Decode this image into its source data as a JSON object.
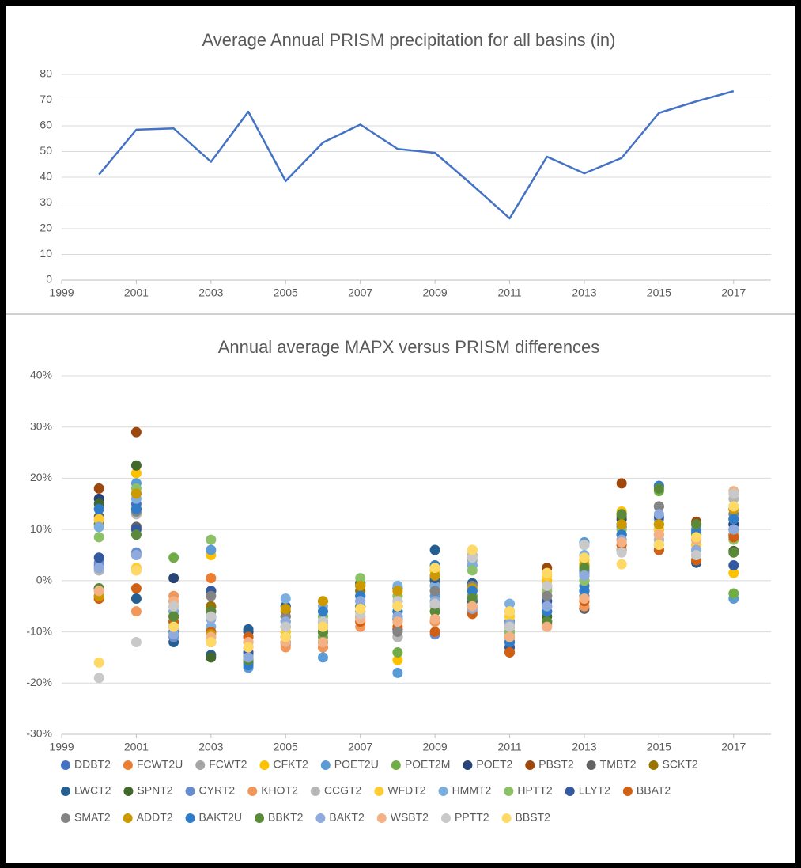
{
  "chart_data": [
    {
      "type": "line",
      "title": "Average Annual PRISM precipitation for all basins (in)",
      "x": [
        2000,
        2001,
        2002,
        2003,
        2004,
        2005,
        2006,
        2007,
        2008,
        2009,
        2010,
        2011,
        2012,
        2013,
        2014,
        2015,
        2016,
        2017
      ],
      "values": [
        41,
        58.5,
        59,
        46,
        65.5,
        38.5,
        53.5,
        60.5,
        51,
        49.5,
        37,
        24,
        48,
        41.5,
        47.5,
        65,
        69.5,
        73.5
      ],
      "color": "#4472c4",
      "xlim": [
        1999,
        2018
      ],
      "xticks": [
        1999,
        2001,
        2003,
        2005,
        2007,
        2009,
        2011,
        2013,
        2015,
        2017
      ],
      "ylim": [
        0,
        80
      ],
      "yticks": [
        0,
        10,
        20,
        30,
        40,
        50,
        60,
        70,
        80
      ],
      "grid": true
    },
    {
      "type": "scatter",
      "title": "Annual average MAPX versus PRISM differences",
      "x": [
        2000,
        2001,
        2002,
        2003,
        2004,
        2005,
        2006,
        2007,
        2008,
        2009,
        2010,
        2011,
        2012,
        2013,
        2014,
        2015,
        2016,
        2017
      ],
      "xlim": [
        1999,
        2018
      ],
      "xticks": [
        1999,
        2001,
        2003,
        2005,
        2007,
        2009,
        2011,
        2013,
        2015,
        2017
      ],
      "ylim": [
        -30,
        40
      ],
      "yticks": [
        {
          "value": -30,
          "label": "-30%"
        },
        {
          "value": -20,
          "label": "-20%"
        },
        {
          "value": -10,
          "label": "-10%"
        },
        {
          "value": 0,
          "label": "0%"
        },
        {
          "value": 10,
          "label": "10%"
        },
        {
          "value": 20,
          "label": "20%"
        },
        {
          "value": 30,
          "label": "30%"
        },
        {
          "value": 40,
          "label": "40%"
        }
      ],
      "grid": true,
      "legend": "bottom",
      "series": [
        {
          "name": "DDBT2",
          "color": "#4472c4",
          "values": [
            3,
            15,
            -10,
            -6,
            -15,
            -12,
            -10,
            -4,
            -7,
            0,
            -3,
            -12,
            -5,
            -1,
            9,
            9,
            7,
            11
          ]
        },
        {
          "name": "FCWT2U",
          "color": "#ed7d31",
          "values": [
            -3,
            5,
            -4,
            0.5,
            -12,
            -11,
            -8,
            -8,
            -8,
            -8,
            -5,
            -13,
            -8,
            -4,
            7,
            11,
            6,
            9
          ]
        },
        {
          "name": "FCWT2",
          "color": "#a5a5a5",
          "values": [
            2,
            13,
            -5,
            -7,
            -11,
            -9,
            -9,
            -5,
            -6,
            -4,
            4,
            -10,
            -2,
            7,
            10,
            10,
            6,
            10
          ]
        },
        {
          "name": "CFKT2",
          "color": "#ffc000",
          "values": [
            -3.5,
            21,
            -9,
            5,
            -13,
            -10,
            -6,
            -5,
            -15.5,
            3,
            5,
            -7,
            0,
            4,
            13.5,
            11,
            8,
            1.5
          ]
        },
        {
          "name": "POET2U",
          "color": "#5b9bd5",
          "values": [
            11,
            19,
            -8,
            6,
            -17,
            -12.5,
            -15,
            -2,
            -18,
            -3,
            3,
            -13,
            -6,
            7.5,
            9,
            18.5,
            9,
            -3.5
          ]
        },
        {
          "name": "POET2M",
          "color": "#70ad47",
          "values": [
            -2,
            9,
            4.5,
            -6,
            -13,
            -7,
            -11,
            -1,
            -14,
            -6,
            -3,
            -8,
            -8,
            3,
            8,
            17.5,
            11,
            -2.5
          ]
        },
        {
          "name": "POET2",
          "color": "#264478",
          "values": [
            16,
            14,
            0.5,
            -2,
            -10,
            -5,
            -12,
            -1,
            -9.5,
            1,
            -1,
            -10,
            -4,
            1,
            12,
            12,
            10,
            11
          ]
        },
        {
          "name": "PBST2",
          "color": "#9e480e",
          "values": [
            18,
            29,
            -7,
            -5,
            -11,
            -7,
            -8,
            -3,
            -4,
            -1,
            -2,
            -11,
            2.5,
            -2,
            19,
            10,
            11.5,
            9
          ]
        },
        {
          "name": "TMBT2",
          "color": "#636363",
          "values": [
            12.5,
            10.5,
            -6,
            -12,
            -14,
            -8,
            -13,
            -7,
            -11,
            -2,
            -6,
            -14,
            -5,
            -5.5,
            6,
            14.5,
            4,
            9
          ]
        },
        {
          "name": "SCKT2",
          "color": "#997300",
          "values": [
            11,
            17,
            -8,
            -5,
            -12,
            -6,
            -4,
            -2,
            -3,
            2,
            -4,
            -9,
            -1,
            0,
            13,
            11,
            5,
            14
          ]
        },
        {
          "name": "LWCT2",
          "color": "#255e91",
          "values": [
            -1.5,
            -3.5,
            -12,
            -14.5,
            -9.5,
            -5,
            -10,
            -0.5,
            -1.5,
            6,
            -0.5,
            -6,
            -3,
            2,
            10.5,
            6,
            3.5,
            12
          ]
        },
        {
          "name": "SPNT2",
          "color": "#43682b",
          "values": [
            15,
            22.5,
            -7,
            -15,
            -16,
            -9,
            -12,
            -0.5,
            -7.5,
            0,
            -4,
            -11,
            -7,
            3,
            12.5,
            7,
            11,
            5.8
          ]
        },
        {
          "name": "CYRT2",
          "color": "#698ed0",
          "values": [
            3.5,
            5.5,
            -11,
            -10,
            -14.5,
            -10,
            -9,
            -4,
            -6,
            -10.5,
            -5,
            -8,
            -6,
            1.5,
            11,
            8,
            10,
            10
          ]
        },
        {
          "name": "KHOT2",
          "color": "#f1975a",
          "values": [
            -3,
            -6,
            -3,
            -11,
            -12,
            -13,
            -13,
            -9,
            -5,
            -8,
            -6,
            -13,
            -9,
            -5,
            6,
            9,
            7,
            9
          ]
        },
        {
          "name": "CCGT2",
          "color": "#b7b7b7",
          "values": [
            2,
            13,
            -6,
            -7,
            -14,
            -9,
            -8,
            -7,
            -11,
            -5,
            5,
            -9,
            -3,
            7,
            6,
            8,
            6,
            16
          ]
        },
        {
          "name": "WFDT2",
          "color": "#ffcd33",
          "values": [
            12,
            2.5,
            -8,
            -10,
            -12,
            -10,
            -7,
            -6,
            -2,
            2,
            6,
            -7,
            1,
            4.5,
            13,
            10,
            7,
            14.5
          ]
        },
        {
          "name": "HMMT2",
          "color": "#7cafdd",
          "values": [
            10.5,
            16,
            -6,
            -9,
            -11,
            -3.5,
            -5,
            -3,
            -1,
            -1,
            3,
            -4.5,
            -1.5,
            5,
            9,
            12,
            8,
            10
          ]
        },
        {
          "name": "HPTT2",
          "color": "#8cc168",
          "values": [
            8.5,
            18,
            -8,
            8,
            -13,
            -8,
            -7,
            0.5,
            -3,
            -4,
            2,
            -10,
            -2,
            0,
            10,
            11,
            8,
            8
          ]
        },
        {
          "name": "LLYT2",
          "color": "#335aa1",
          "values": [
            4.5,
            10,
            -9,
            -2,
            -14,
            -11,
            -8,
            -5,
            -5,
            0.5,
            -4,
            -13,
            -4,
            -2,
            11,
            12.5,
            9,
            3
          ]
        },
        {
          "name": "BBAT2",
          "color": "#d26012",
          "values": [
            -3.5,
            -1.5,
            -8,
            -10,
            -11,
            -12,
            -10,
            -8,
            -9,
            -10,
            -6.5,
            -14,
            -8.5,
            -4,
            7,
            6,
            4,
            8.5
          ]
        },
        {
          "name": "SMAT2",
          "color": "#848484",
          "values": [
            2.5,
            13.5,
            -4,
            -3,
            -13,
            -7,
            -9,
            -6,
            -10,
            -2,
            -1,
            -12,
            -3,
            -3,
            9,
            14.5,
            5,
            13
          ]
        },
        {
          "name": "ADDT2",
          "color": "#cc9a00",
          "values": [
            -3,
            17,
            -7,
            -10.5,
            -15,
            -5.5,
            -4,
            -1,
            -2,
            1,
            -1.5,
            -11,
            -1,
            3,
            11,
            11,
            9,
            14
          ]
        },
        {
          "name": "BAKT2U",
          "color": "#2f7dc9",
          "values": [
            14,
            14,
            -9,
            -7,
            -16.5,
            -12,
            -6,
            -3,
            -6,
            3,
            -2,
            -12,
            -6,
            -2,
            9,
            18.5,
            9.5,
            12
          ]
        },
        {
          "name": "BBKT2",
          "color": "#5a8a39",
          "values": [
            -1.5,
            9,
            -7,
            -6,
            -15.5,
            -9,
            -10,
            -5,
            -7,
            -6,
            -3.5,
            -9,
            -8,
            2.5,
            13,
            18,
            11,
            5.5
          ]
        },
        {
          "name": "BAKT2",
          "color": "#8faadc",
          "values": [
            2.5,
            5,
            -10.5,
            -7.5,
            -15,
            -8,
            -9,
            -4,
            -7,
            -4,
            -5.5,
            -8.5,
            -5,
            1,
            8,
            13,
            6,
            10
          ]
        },
        {
          "name": "WSBT2",
          "color": "#f4b183",
          "values": [
            -2,
            2,
            -4,
            -11,
            -12,
            -12,
            -12,
            -7.5,
            -8,
            -7.5,
            -5,
            -11,
            -9,
            -3.5,
            7.5,
            9,
            8,
            17.5
          ]
        },
        {
          "name": "PPTT2",
          "color": "#c9c9c9",
          "values": [
            -19,
            -12,
            -5,
            -7,
            -13,
            -9,
            -8,
            -6.5,
            -4,
            -4.5,
            4.5,
            -9,
            -1,
            7,
            5.5,
            7,
            5,
            17
          ]
        },
        {
          "name": "BBST2",
          "color": "#ffd966",
          "values": [
            -16,
            2,
            -9,
            -12,
            -13,
            -11,
            -9,
            -5.5,
            -5,
            2.5,
            6,
            -6,
            1.5,
            4.5,
            3.2,
            7,
            8.5,
            14.5
          ]
        }
      ]
    }
  ]
}
